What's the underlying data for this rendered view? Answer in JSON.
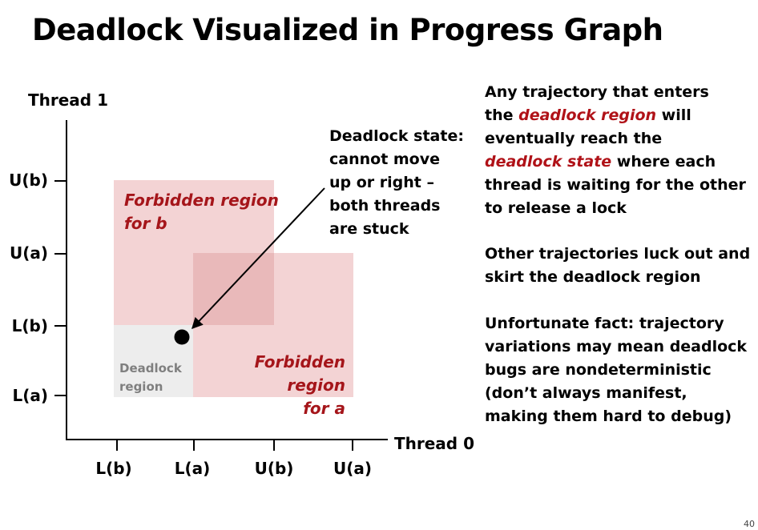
{
  "title": "Deadlock Visualized in Progress Graph",
  "axes": {
    "y_title": "Thread 1",
    "x_title": "Thread 0",
    "y_ticks": [
      "U(b)",
      "U(a)",
      "L(b)",
      "L(a)"
    ],
    "x_ticks": [
      "L(b)",
      "L(a)",
      "U(b)",
      "U(a)"
    ]
  },
  "regions": {
    "forbidden_b": [
      "Forbidden region",
      "for b"
    ],
    "forbidden_a": [
      "Forbidden region",
      "for a"
    ],
    "deadlock": [
      "Deadlock",
      "region"
    ]
  },
  "callout": {
    "lines": [
      "Deadlock state:",
      "cannot move",
      "up or right –",
      "both threads",
      "are stuck"
    ]
  },
  "side": {
    "p1": {
      "l1": "Any trajectory that enters",
      "l2_pre": "the ",
      "l2_em": "deadlock region",
      "l2_post": " will",
      "l3": "eventually reach the",
      "l4_em": "deadlock state",
      "l4_post": " where each",
      "l5": "thread is waiting for the other",
      "l6": "to release a lock"
    },
    "p2": [
      "Other trajectories luck out and",
      "skirt the deadlock region"
    ],
    "p3": [
      "Unfortunate fact: trajectory",
      "variations may mean deadlock",
      "bugs are nondeterministic",
      "(don’t always manifest,",
      "making them hard to debug)"
    ]
  },
  "page_number": "40",
  "colors": {
    "forbidden_fill": "#f3d3d4",
    "overlap_fill": "#e9b9ba",
    "deadlock_fill": "#ededed",
    "emphasis": "#b01218",
    "region_label": "#a5151a"
  }
}
